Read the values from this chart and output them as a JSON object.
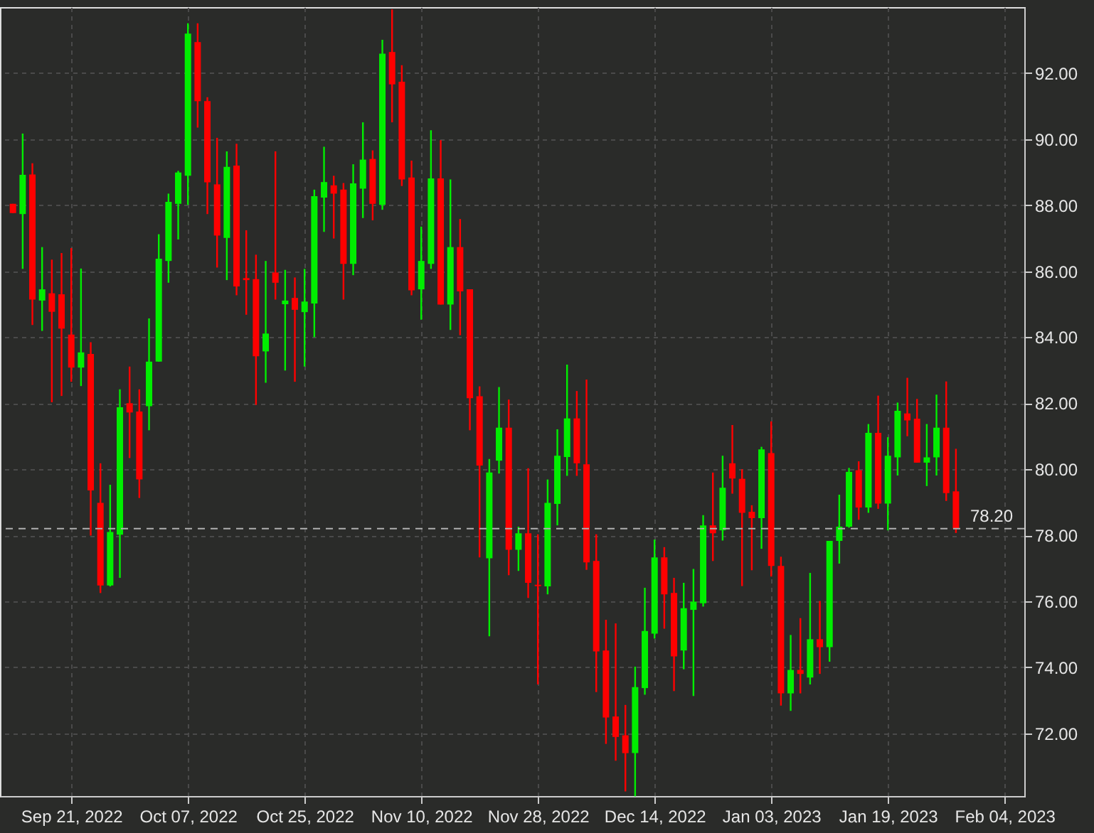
{
  "chart_data": {
    "type": "candlestick",
    "categories": [
      null,
      null,
      null,
      null,
      null,
      null,
      "Sep 21, 2022",
      null,
      null,
      null,
      null,
      null,
      null,
      null,
      null,
      null,
      null,
      null,
      "Oct 07, 2022",
      null,
      null,
      null,
      null,
      null,
      null,
      null,
      null,
      null,
      null,
      null,
      "Oct 25, 2022",
      null,
      null,
      null,
      null,
      null,
      null,
      null,
      null,
      null,
      null,
      null,
      "Nov 10, 2022",
      null,
      null,
      null,
      null,
      null,
      null,
      null,
      null,
      null,
      null,
      null,
      "Nov 28, 2022",
      null,
      null,
      null,
      null,
      null,
      null,
      null,
      null,
      null,
      null,
      null,
      "Dec 14, 2022",
      null,
      null,
      null,
      null,
      null,
      null,
      null,
      null,
      null,
      null,
      null,
      "Jan 03, 2023",
      null,
      null,
      null,
      null,
      null,
      null,
      null,
      null,
      null,
      null,
      null,
      "Jan 19, 2023",
      null,
      null,
      null,
      null,
      null,
      null,
      null,
      null,
      null,
      null,
      null,
      "Feb 04, 2023"
    ],
    "ohlc": [
      [
        88.04,
        88.04,
        87.76,
        87.76
      ],
      [
        87.73,
        90.17,
        86.07,
        88.92
      ],
      [
        88.93,
        89.27,
        84.37,
        85.14
      ],
      [
        85.11,
        86.73,
        84.19,
        85.45
      ],
      [
        85.33,
        86.35,
        82.03,
        84.77
      ],
      [
        85.3,
        86.55,
        82.22,
        84.26
      ],
      [
        84.08,
        86.7,
        82.65,
        83.08
      ],
      [
        83.08,
        86.08,
        82.52,
        83.54
      ],
      [
        83.49,
        83.85,
        77.99,
        79.36
      ],
      [
        78.98,
        80.18,
        76.25,
        76.48
      ],
      [
        76.48,
        79.53,
        76.45,
        78.1
      ],
      [
        78.02,
        82.42,
        76.71,
        81.88
      ],
      [
        82.0,
        83.11,
        80.34,
        81.72
      ],
      [
        81.75,
        82.42,
        79.13,
        79.69
      ],
      [
        81.91,
        84.57,
        81.18,
        83.26
      ],
      [
        83.26,
        87.12,
        83.26,
        86.38
      ],
      [
        86.31,
        88.35,
        85.65,
        88.1
      ],
      [
        88.04,
        89.04,
        86.96,
        88.99
      ],
      [
        88.89,
        93.51,
        88.01,
        93.2
      ],
      [
        92.94,
        93.51,
        90.35,
        91.15
      ],
      [
        91.15,
        91.27,
        87.73,
        88.69
      ],
      [
        88.63,
        90.04,
        86.11,
        87.08
      ],
      [
        87.01,
        89.63,
        85.73,
        89.16
      ],
      [
        89.2,
        89.86,
        85.27,
        85.54
      ],
      [
        85.79,
        87.24,
        84.68,
        85.73
      ],
      [
        85.76,
        86.5,
        81.95,
        83.42
      ],
      [
        83.57,
        86.31,
        82.62,
        84.11
      ],
      [
        85.96,
        89.63,
        85.14,
        85.65
      ],
      [
        85.0,
        86.04,
        82.99,
        85.11
      ],
      [
        85.19,
        85.81,
        82.65,
        84.83
      ],
      [
        84.76,
        86.07,
        83.11,
        85.08
      ],
      [
        85.02,
        88.47,
        84.0,
        88.27
      ],
      [
        88.23,
        89.77,
        87.19,
        88.7
      ],
      [
        88.6,
        88.89,
        86.99,
        88.35
      ],
      [
        88.47,
        88.67,
        85.14,
        86.22
      ],
      [
        86.22,
        89.24,
        85.88,
        88.66
      ],
      [
        88.5,
        90.51,
        87.61,
        89.38
      ],
      [
        89.4,
        89.66,
        87.54,
        88.04
      ],
      [
        88.01,
        93.01,
        87.86,
        92.59
      ],
      [
        92.64,
        93.93,
        90.51,
        91.66
      ],
      [
        91.74,
        92.24,
        88.58,
        88.78
      ],
      [
        88.84,
        89.35,
        85.27,
        85.42
      ],
      [
        85.45,
        87.35,
        84.53,
        86.31
      ],
      [
        86.22,
        90.27,
        86.07,
        88.81
      ],
      [
        88.81,
        89.97,
        84.99,
        84.99
      ],
      [
        84.99,
        88.78,
        84.22,
        86.73
      ],
      [
        86.73,
        87.58,
        84.06,
        85.39
      ],
      [
        85.45,
        85.45,
        81.18,
        82.15
      ],
      [
        82.21,
        82.51,
        77.33,
        80.11
      ],
      [
        77.3,
        80.31,
        74.94,
        79.9
      ],
      [
        80.26,
        82.49,
        79.87,
        81.26
      ],
      [
        81.26,
        82.11,
        76.79,
        77.56
      ],
      [
        77.56,
        78.26,
        76.92,
        78.06
      ],
      [
        78.06,
        80.03,
        76.1,
        76.56
      ],
      [
        76.5,
        78.03,
        73.48,
        76.46
      ],
      [
        76.45,
        79.69,
        76.21,
        78.98
      ],
      [
        78.95,
        81.21,
        78.3,
        80.41
      ],
      [
        80.37,
        83.17,
        79.8,
        81.54
      ],
      [
        81.54,
        82.37,
        79.8,
        80.18
      ],
      [
        80.15,
        82.72,
        76.95,
        77.18
      ],
      [
        77.22,
        78.03,
        73.25,
        74.48
      ],
      [
        74.51,
        75.44,
        71.68,
        72.48
      ],
      [
        72.51,
        75.33,
        71.17,
        71.89
      ],
      [
        71.94,
        72.86,
        70.24,
        71.4
      ],
      [
        71.4,
        74.02,
        70.09,
        73.4
      ],
      [
        73.37,
        76.41,
        73.17,
        75.1
      ],
      [
        75.02,
        77.87,
        74.87,
        77.33
      ],
      [
        77.33,
        77.64,
        75.17,
        76.21
      ],
      [
        76.25,
        76.71,
        73.28,
        74.33
      ],
      [
        74.51,
        76.56,
        73.94,
        75.79
      ],
      [
        75.74,
        76.98,
        73.13,
        75.99
      ],
      [
        75.94,
        78.61,
        75.84,
        78.3
      ],
      [
        78.3,
        79.9,
        77.22,
        78.06
      ],
      [
        78.15,
        80.41,
        77.84,
        79.44
      ],
      [
        80.18,
        81.34,
        79.26,
        79.72
      ],
      [
        79.71,
        80.0,
        76.46,
        78.68
      ],
      [
        78.71,
        78.91,
        76.94,
        78.52
      ],
      [
        78.52,
        80.68,
        77.59,
        80.6
      ],
      [
        80.49,
        81.45,
        76.75,
        77.07
      ],
      [
        77.07,
        77.35,
        72.84,
        73.21
      ],
      [
        73.21,
        74.98,
        72.68,
        73.92
      ],
      [
        73.92,
        75.49,
        73.21,
        73.8
      ],
      [
        73.69,
        76.86,
        73.48,
        74.85
      ],
      [
        74.85,
        76.01,
        73.8,
        74.61
      ],
      [
        74.61,
        77.83,
        74.17,
        77.83
      ],
      [
        77.83,
        79.23,
        77.14,
        78.26
      ],
      [
        78.26,
        80.04,
        78.23,
        79.92
      ],
      [
        79.97,
        80.24,
        78.47,
        78.84
      ],
      [
        78.84,
        81.37,
        78.68,
        81.1
      ],
      [
        81.1,
        82.23,
        78.8,
        78.96
      ],
      [
        78.96,
        80.97,
        78.15,
        80.41
      ],
      [
        80.36,
        82.02,
        79.81,
        81.77
      ],
      [
        81.69,
        82.77,
        81.0,
        81.48
      ],
      [
        81.53,
        82.13,
        80.2,
        80.2
      ],
      [
        80.2,
        81.37,
        79.49,
        80.36
      ],
      [
        80.36,
        82.26,
        79.81,
        81.26
      ],
      [
        81.26,
        82.66,
        79.04,
        79.28
      ],
      [
        79.33,
        80.62,
        78.07,
        78.2
      ],
      null,
      null,
      null,
      null,
      null
    ],
    "colors": [
      "#ff0000",
      "#00ee00",
      "#ff0000",
      "#00ee00",
      "#ff0000",
      "#ff0000",
      "#ff0000",
      "#00ee00",
      "#ff0000",
      "#ff0000",
      "#00ee00",
      "#00ee00",
      "#ff0000",
      "#ff0000",
      "#00ee00",
      "#00ee00",
      "#00ee00",
      "#00ee00",
      "#00ee00",
      "#ff0000",
      "#ff0000",
      "#ff0000",
      "#00ee00",
      "#ff0000",
      "#ff0000",
      "#ff0000",
      "#00ee00",
      "#ff0000",
      "#00ee00",
      "#ff0000",
      "#00ee00",
      "#00ee00",
      "#00ee00",
      "#ff0000",
      "#ff0000",
      "#00ee00",
      "#00ee00",
      "#ff0000",
      "#00ee00",
      "#ff0000",
      "#ff0000",
      "#ff0000",
      "#00ee00",
      "#00ee00",
      "#ff0000",
      "#00ee00",
      "#ff0000",
      "#ff0000",
      "#ff0000",
      "#00ee00",
      "#00ee00",
      "#ff0000",
      "#00ee00",
      "#ff0000",
      "#ff0000",
      "#00ee00",
      "#00ee00",
      "#00ee00",
      "#ff0000",
      "#ff0000",
      "#ff0000",
      "#ff0000",
      "#ff0000",
      "#ff0000",
      "#00ee00",
      "#00ee00",
      "#00ee00",
      "#ff0000",
      "#ff0000",
      "#00ee00",
      "#00ee00",
      "#00ee00",
      "#ff0000",
      "#00ee00",
      "#ff0000",
      "#ff0000",
      "#ff0000",
      "#00ee00",
      "#ff0000",
      "#ff0000",
      "#00ee00",
      "#ff0000",
      "#00ee00",
      "#ff0000",
      "#00ee00",
      "#00ee00",
      "#00ee00",
      "#ff0000",
      "#00ee00",
      "#ff0000",
      "#00ee00",
      "#00ee00",
      "#ff0000",
      "#ff0000",
      "#00ee00",
      "#00ee00",
      "#ff0000",
      "#ff0000",
      null,
      null,
      null,
      null,
      null
    ],
    "ylim": [
      70.1,
      94
    ],
    "yticks": [
      {
        "value": 72,
        "label": "72.00"
      },
      {
        "value": 74,
        "label": "74.00"
      },
      {
        "value": 76,
        "label": "76.00"
      },
      {
        "value": 78,
        "label": "78.00"
      },
      {
        "value": 80,
        "label": "80.00"
      },
      {
        "value": 82,
        "label": "82.00"
      },
      {
        "value": 84,
        "label": "84.00"
      },
      {
        "value": 86,
        "label": "86.00"
      },
      {
        "value": 88,
        "label": "88.00"
      },
      {
        "value": 90,
        "label": "90.00"
      },
      {
        "value": 92,
        "label": "92.00"
      }
    ],
    "ref_lines": [
      {
        "axis": "y",
        "value": 78.2,
        "label": "78.20",
        "color": "#b0b0b0",
        "line_style": "dashed"
      }
    ],
    "grid": true
  }
}
